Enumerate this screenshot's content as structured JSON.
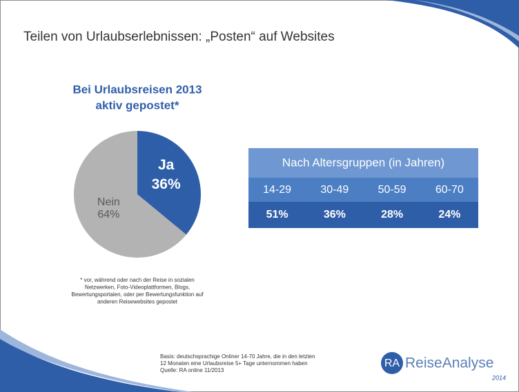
{
  "slide": {
    "title": "Teilen von Urlaubserlebnissen: „Posten“ auf Websites",
    "footnote": [
      "* vor, während oder nach der Reise in sozialen",
      "Netzwerken, Foto-Videoplattformen, Blogs,",
      "Bewertungsportalen, oder per Bewertungsfunktion auf",
      "anderen Reisewebsites gepostet"
    ],
    "basis": [
      "Basis: deutschsprachige Onliner 14-70 Jahre, die in den letzten",
      "12 Monaten eine Urlaubsreise 5+ Tage unternommen haben",
      "Quelle: RA online 11/2013"
    ],
    "logo": {
      "mark": "RA",
      "name": "ReiseAnalyse",
      "year": "2014"
    }
  },
  "chart_data": {
    "type": "pie",
    "title": [
      "Bei Urlaubsreisen 2013",
      "aktiv gepostet*"
    ],
    "categories": [
      "Ja",
      "Nein"
    ],
    "values": [
      36,
      64
    ],
    "value_labels": [
      "36%",
      "64%"
    ],
    "colors": [
      "#2f5ea8",
      "#b3b3b3"
    ],
    "label_colors": [
      "#ffffff",
      "#595959"
    ]
  },
  "table": {
    "header": "Nach Altersgruppen (in Jahren)",
    "columns": [
      "14-29",
      "30-49",
      "50-59",
      "60-70"
    ],
    "rows": [
      [
        "51%",
        "36%",
        "28%",
        "24%"
      ]
    ]
  }
}
